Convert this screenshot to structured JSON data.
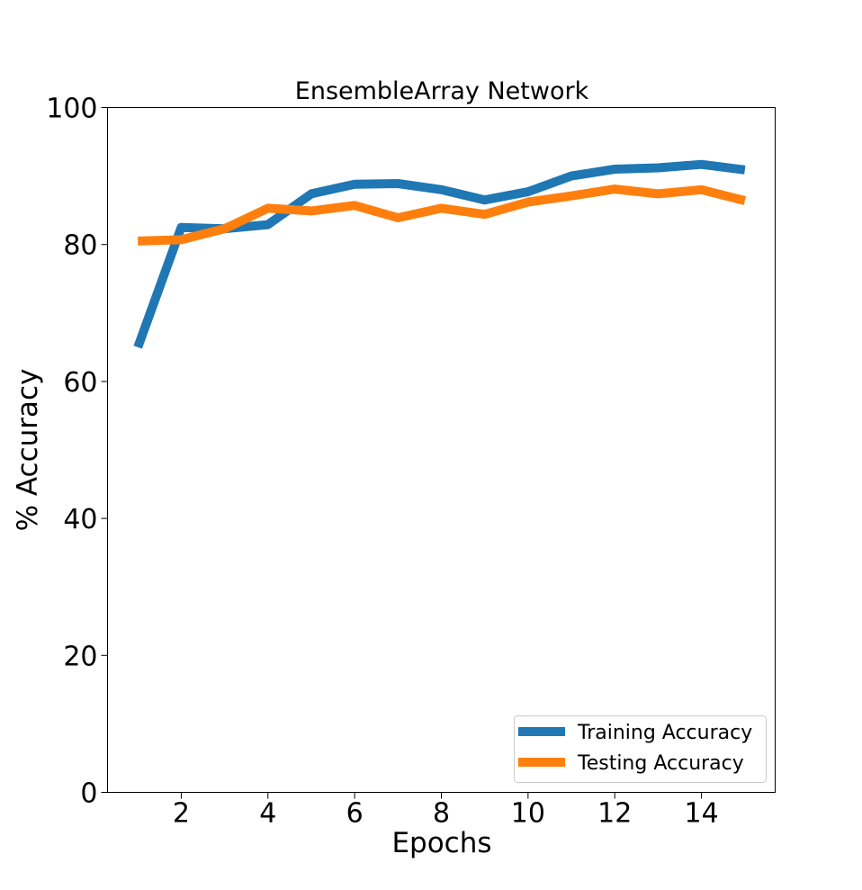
{
  "chart_data": {
    "type": "line",
    "title": "EnsembleArray Network",
    "xlabel": "Epochs",
    "ylabel": "% Accuracy",
    "xlim": [
      0.3,
      15.7
    ],
    "ylim": [
      0,
      100
    ],
    "xticks": [
      2,
      4,
      6,
      8,
      10,
      12,
      14
    ],
    "yticks": [
      0,
      20,
      40,
      60,
      80,
      100
    ],
    "grid": false,
    "legend_position": "lower-right",
    "x": [
      1,
      2,
      3,
      4,
      5,
      6,
      7,
      8,
      9,
      10,
      11,
      12,
      13,
      14,
      15
    ],
    "series": [
      {
        "name": "Training Accuracy",
        "color": "#1f77b4",
        "values": [
          65.0,
          82.5,
          82.3,
          82.9,
          87.4,
          88.8,
          88.9,
          88.0,
          86.5,
          87.7,
          90.0,
          91.0,
          91.2,
          91.7,
          90.9
        ]
      },
      {
        "name": "Testing Accuracy",
        "color": "#ff7f0e",
        "values": [
          80.5,
          80.7,
          82.3,
          85.3,
          84.9,
          85.7,
          83.9,
          85.3,
          84.4,
          86.2,
          87.1,
          88.1,
          87.4,
          88.0,
          86.4
        ]
      }
    ]
  }
}
